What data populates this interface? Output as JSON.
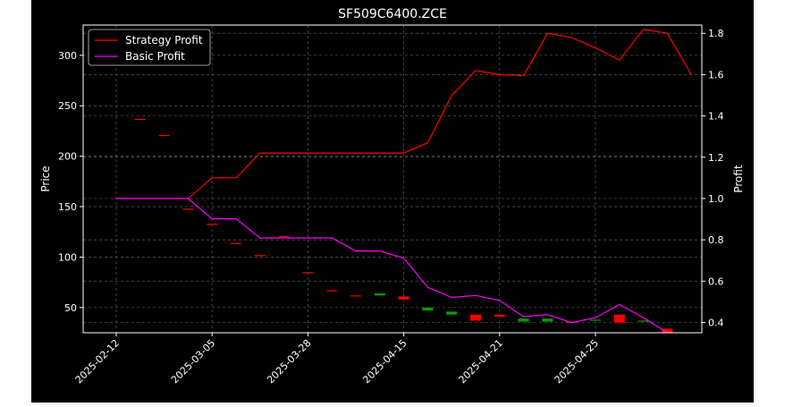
{
  "chart_data": {
    "type": "line",
    "title": "SF509C6400.ZCE",
    "ylabel_left": "Price",
    "ylabel_right": "Profit",
    "xlabel": "",
    "grid": true,
    "legend_position": "top-left",
    "x_ticks": [
      "2025-02-12",
      "2025-03-05",
      "2025-03-28",
      "2025-04-15",
      "2025-04-21",
      "2025-04-25"
    ],
    "y_left": {
      "lim": [
        25,
        330
      ],
      "ticks": [
        50,
        100,
        150,
        200,
        250,
        300
      ]
    },
    "y_right": {
      "lim": [
        0.35,
        1.84
      ],
      "ticks": [
        0.4,
        0.6,
        0.8,
        1.0,
        1.2,
        1.4,
        1.6,
        1.8
      ]
    },
    "series": [
      {
        "name": "Strategy Profit",
        "axis": "right",
        "color": "#ff0000",
        "values": [
          1.0,
          1.0,
          1.0,
          1.0,
          1.1,
          1.1,
          1.22,
          1.22,
          1.22,
          1.22,
          1.22,
          1.22,
          1.22,
          1.27,
          1.5,
          1.62,
          1.6,
          1.595,
          1.8,
          1.78,
          1.73,
          1.67,
          1.82,
          1.8,
          1.6
        ]
      },
      {
        "name": "Basic Profit",
        "axis": "left",
        "color": "#ff00ff",
        "values": [
          158,
          158,
          158,
          158,
          138,
          138,
          119,
          119,
          119,
          119,
          106,
          106,
          99,
          70,
          60,
          62,
          57,
          41,
          43,
          35,
          40,
          53,
          40,
          25
        ]
      }
    ],
    "candles": [
      {
        "i": 1,
        "open": 237,
        "close": 237,
        "color": "#ff0000"
      },
      {
        "i": 2,
        "open": 221,
        "close": 221,
        "color": "#ff0000"
      },
      {
        "i": 3,
        "open": 148,
        "close": 148,
        "color": "#ff0000"
      },
      {
        "i": 4,
        "open": 133,
        "close": 133,
        "color": "#ff0000"
      },
      {
        "i": 5,
        "open": 114,
        "close": 114,
        "color": "#ff0000"
      },
      {
        "i": 6,
        "open": 102,
        "close": 102,
        "color": "#ff0000"
      },
      {
        "i": 7,
        "open": 121,
        "close": 121,
        "color": "#ff0000"
      },
      {
        "i": 8,
        "open": 85,
        "close": 85,
        "color": "#ff0000"
      },
      {
        "i": 9,
        "open": 67,
        "close": 67,
        "color": "#ff0000"
      },
      {
        "i": 10,
        "open": 62,
        "close": 62,
        "color": "#ff0000"
      },
      {
        "i": 11,
        "open": 62,
        "close": 64,
        "color": "#00a000"
      },
      {
        "i": 12,
        "open": 61,
        "close": 58,
        "color": "#ff0000"
      },
      {
        "i": 13,
        "open": 47,
        "close": 50,
        "color": "#00a000"
      },
      {
        "i": 14,
        "open": 43,
        "close": 46,
        "color": "#00a000"
      },
      {
        "i": 15,
        "open": 43,
        "close": 37,
        "color": "#ff0000"
      },
      {
        "i": 16,
        "open": 43,
        "close": 41,
        "color": "#ff0000"
      },
      {
        "i": 17,
        "open": 36,
        "close": 39,
        "color": "#00a000"
      },
      {
        "i": 18,
        "open": 36,
        "close": 39,
        "color": "#00a000"
      },
      {
        "i": 19,
        "open": 36,
        "close": 35,
        "color": "#ff0000"
      },
      {
        "i": 20,
        "open": 37,
        "close": 38,
        "color": "#00a000"
      },
      {
        "i": 21,
        "open": 43,
        "close": 35,
        "color": "#ff0000"
      },
      {
        "i": 22,
        "open": 36,
        "close": 37,
        "color": "#00a000"
      },
      {
        "i": 23,
        "open": 29,
        "close": 25,
        "color": "#ff0000"
      }
    ]
  }
}
